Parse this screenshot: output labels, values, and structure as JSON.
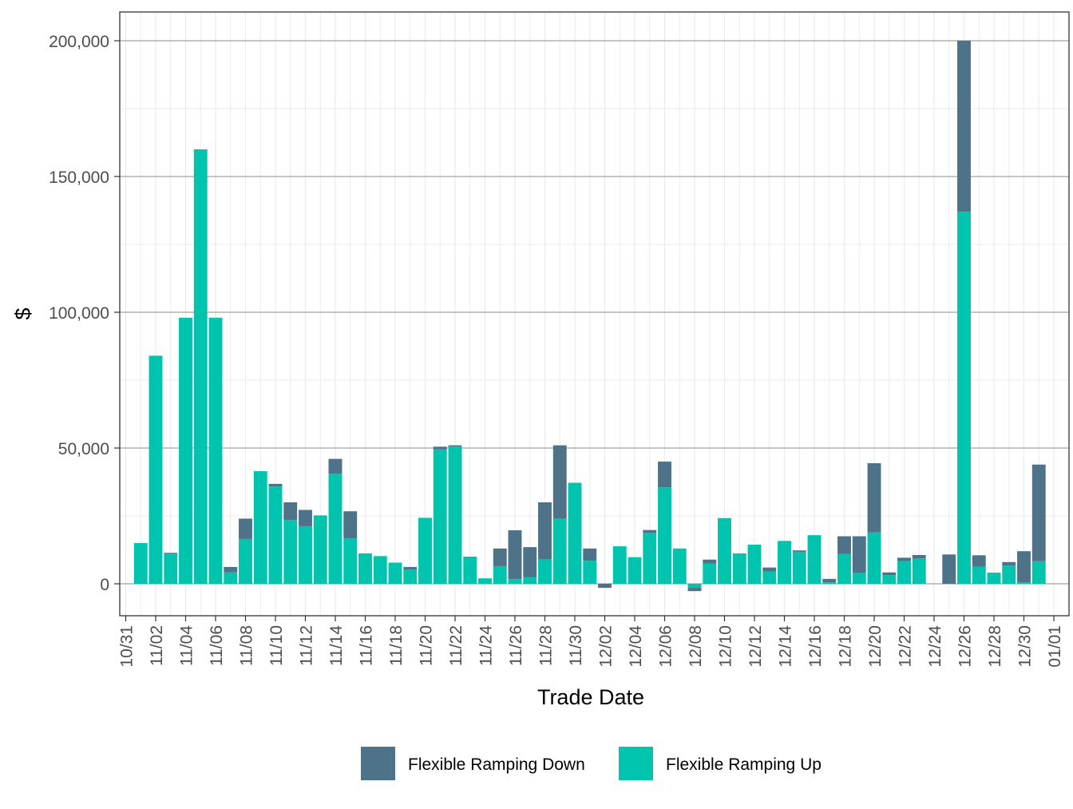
{
  "chart_data": {
    "type": "bar",
    "stacked": true,
    "title": "",
    "xlabel": "Trade Date",
    "ylabel": "$",
    "ylim": [
      -12000,
      210000
    ],
    "yticks": [
      0,
      50000,
      100000,
      150000,
      200000
    ],
    "ytick_labels": [
      "0",
      "50,000",
      "100,000",
      "150,000",
      "200,000"
    ],
    "xtick_labels": [
      "10/31",
      "11/02",
      "11/04",
      "11/06",
      "11/08",
      "11/10",
      "11/12",
      "11/14",
      "11/16",
      "11/18",
      "11/20",
      "11/22",
      "11/24",
      "11/26",
      "11/28",
      "11/30",
      "12/02",
      "12/04",
      "12/06",
      "12/08",
      "12/10",
      "12/12",
      "12/14",
      "12/16",
      "12/18",
      "12/20",
      "12/22",
      "12/24",
      "12/26",
      "12/28",
      "12/30",
      "01/01"
    ],
    "grid": true,
    "legend_position": "bottom",
    "categories": [
      "11/01",
      "11/02",
      "11/03",
      "11/04",
      "11/05",
      "11/06",
      "11/07",
      "11/08",
      "11/09",
      "11/10",
      "11/11",
      "11/12",
      "11/13",
      "11/14",
      "11/15",
      "11/16",
      "11/17",
      "11/18",
      "11/19",
      "11/20",
      "11/21",
      "11/22",
      "11/23",
      "11/24",
      "11/25",
      "11/26",
      "11/27",
      "11/28",
      "11/29",
      "11/30",
      "12/01",
      "12/02",
      "12/03",
      "12/04",
      "12/05",
      "12/06",
      "12/07",
      "12/08",
      "12/09",
      "12/10",
      "12/11",
      "12/12",
      "12/13",
      "12/14",
      "12/15",
      "12/16",
      "12/17",
      "12/18",
      "12/19",
      "12/20",
      "12/21",
      "12/22",
      "12/23",
      "12/24",
      "12/25",
      "12/26",
      "12/27",
      "12/28",
      "12/29",
      "12/30",
      "12/31"
    ],
    "series": [
      {
        "name": "Flexible Ramping Down",
        "color": "#4e7287",
        "values": [
          0,
          0,
          200,
          0,
          0,
          0,
          2000,
          7500,
          0,
          1000,
          6500,
          6000,
          0,
          5500,
          10000,
          0,
          0,
          0,
          1000,
          0,
          1000,
          500,
          0,
          0,
          6500,
          18000,
          11000,
          21000,
          27000,
          0,
          4500,
          -1500,
          0,
          0,
          1000,
          9500,
          0,
          -1200,
          1500,
          0,
          0,
          0,
          1500,
          0,
          500,
          0,
          1300,
          6500,
          13500,
          25500,
          1000,
          1200,
          1200,
          0,
          10800,
          63000,
          4200,
          0,
          1300,
          11500,
          35600
        ]
      },
      {
        "name": "Flexible Ramping Up",
        "color": "#00c4ad",
        "values": [
          15000,
          84000,
          11200,
          98000,
          160000,
          98000,
          4200,
          16500,
          41500,
          35800,
          23500,
          21200,
          25200,
          40500,
          16700,
          11200,
          10200,
          7800,
          5200,
          24300,
          49500,
          50500,
          10000,
          2000,
          6500,
          1700,
          2500,
          9000,
          24000,
          37200,
          8500,
          0,
          13800,
          9800,
          18800,
          35500,
          13000,
          -1500,
          7400,
          24200,
          11200,
          14400,
          4500,
          15800,
          11800,
          17900,
          500,
          11000,
          4000,
          18900,
          3200,
          8400,
          9400,
          0,
          0,
          137000,
          6300,
          4100,
          6700,
          500,
          8300
        ]
      }
    ]
  }
}
